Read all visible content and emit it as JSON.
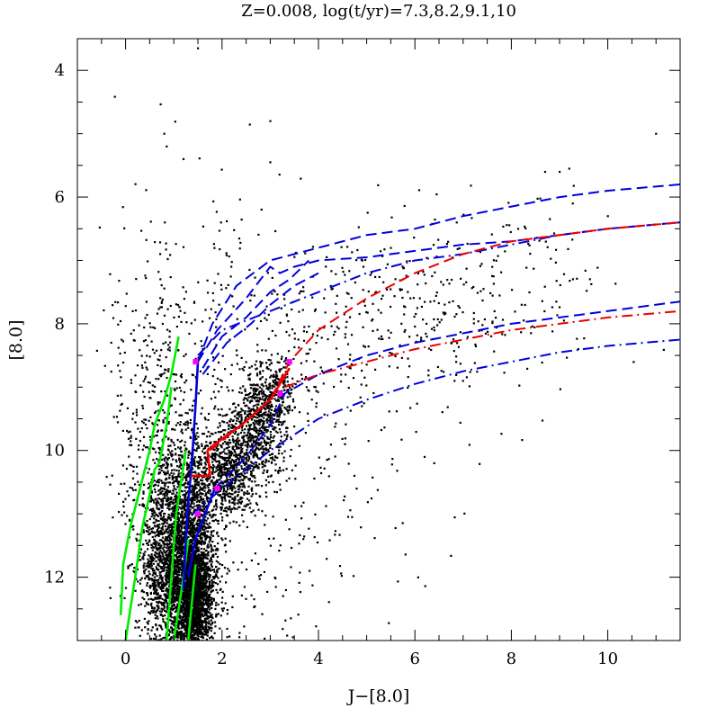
{
  "chart_data": {
    "type": "scatter",
    "title": "Z=0.008,  log(t/yr)=7.3,8.2,9.1,10",
    "xlabel": "J−[8.0]",
    "ylabel": "[8.0]",
    "xlim": [
      -1.0,
      11.5
    ],
    "ylim": [
      13.0,
      3.5
    ],
    "y_inverted": true,
    "x_ticks": [
      0,
      2,
      4,
      6,
      8,
      10
    ],
    "y_ticks": [
      4,
      6,
      8,
      10,
      12
    ],
    "grid": false,
    "legend": "none",
    "colors": {
      "points": "#000000",
      "green": "#00ee00",
      "blue": "#0000dd",
      "red": "#ee0000",
      "magenta": "#ff00ff"
    },
    "scatter_clouds": [
      {
        "cx": 1.1,
        "cy": 12.0,
        "sx": 0.35,
        "sy": 0.7,
        "n": 2400
      },
      {
        "cx": 1.45,
        "cy": 12.3,
        "sx": 0.18,
        "sy": 0.55,
        "n": 1600
      },
      {
        "cx": 1.2,
        "cy": 10.8,
        "sx": 0.4,
        "sy": 0.7,
        "n": 900
      },
      {
        "cx": 2.1,
        "cy": 10.4,
        "sx": 0.35,
        "sy": 0.35,
        "n": 700
      },
      {
        "cx": 2.7,
        "cy": 9.7,
        "sx": 0.35,
        "sy": 0.35,
        "n": 500
      },
      {
        "cx": 3.0,
        "cy": 9.1,
        "sx": 0.3,
        "sy": 0.3,
        "n": 350
      },
      {
        "cx": 0.6,
        "cy": 9.5,
        "sx": 0.45,
        "sy": 1.2,
        "n": 300
      },
      {
        "cx": 1.3,
        "cy": 8.0,
        "sx": 0.8,
        "sy": 1.4,
        "n": 150
      },
      {
        "cx": 5.5,
        "cy": 8.0,
        "sx": 2.0,
        "sy": 0.7,
        "n": 400
      },
      {
        "cx": 4.2,
        "cy": 10.5,
        "sx": 1.3,
        "sy": 1.2,
        "n": 130
      },
      {
        "cx": 3.0,
        "cy": 12.2,
        "sx": 1.0,
        "sy": 0.6,
        "n": 70
      },
      {
        "cx": 7.0,
        "cy": 7.0,
        "sx": 1.5,
        "sy": 0.6,
        "n": 80
      }
    ],
    "scatter_points": [
      {
        "x": 1.5,
        "y": 3.65
      },
      {
        "x": 3.0,
        "y": 4.8
      },
      {
        "x": 0.8,
        "y": 5.0
      },
      {
        "x": 0.85,
        "y": 5.2
      },
      {
        "x": 1.2,
        "y": 5.4
      },
      {
        "x": 3.0,
        "y": 5.45
      },
      {
        "x": 11.0,
        "y": 5.0
      },
      {
        "x": 9.0,
        "y": 5.6
      },
      {
        "x": 8.7,
        "y": 5.6
      },
      {
        "x": 9.2,
        "y": 5.55
      },
      {
        "x": 6.2,
        "y": 10.1
      },
      {
        "x": 6.4,
        "y": 10.2
      },
      {
        "x": 10.0,
        "y": 6.3
      },
      {
        "x": 0.3,
        "y": 12.1
      }
    ],
    "series": [
      {
        "style": "solid",
        "color": "green",
        "x": [
          -0.1,
          -0.05,
          0.1,
          0.3,
          0.5,
          0.6,
          0.8,
          0.95,
          1.1
        ],
        "y": [
          12.6,
          11.8,
          11.2,
          10.6,
          10.0,
          9.6,
          9.2,
          8.8,
          8.2
        ]
      },
      {
        "style": "solid",
        "color": "green",
        "x": [
          0.0,
          0.2,
          0.35,
          0.5,
          0.6,
          0.7,
          0.85,
          0.95
        ],
        "y": [
          13.0,
          12.0,
          11.2,
          10.7,
          10.3,
          10.2,
          9.6,
          9.0
        ]
      },
      {
        "style": "solid",
        "color": "green",
        "x": [
          0.85,
          0.95,
          1.05,
          1.15,
          1.25
        ],
        "y": [
          13.0,
          12.0,
          11.0,
          10.5,
          10.0
        ]
      },
      {
        "style": "solid",
        "color": "green",
        "x": [
          1.0,
          1.1,
          1.2,
          1.3
        ],
        "y": [
          13.0,
          12.5,
          12.0,
          11.4
        ]
      },
      {
        "style": "solid",
        "color": "green",
        "x": [
          1.3,
          1.35,
          1.4,
          1.45
        ],
        "y": [
          13.0,
          12.6,
          12.2,
          11.8
        ]
      },
      {
        "style": "solid",
        "color": "blue",
        "x": [
          1.2,
          1.25,
          1.3,
          1.35,
          1.4,
          1.45,
          1.5
        ],
        "y": [
          12.2,
          11.4,
          10.8,
          10.4,
          9.9,
          9.3,
          8.6
        ]
      },
      {
        "style": "solid",
        "color": "blue",
        "x": [
          1.3,
          1.45,
          1.65,
          1.85
        ],
        "y": [
          12.0,
          11.4,
          11.0,
          10.6
        ]
      },
      {
        "style": "solid",
        "color": "red",
        "x": [
          1.35,
          1.45,
          1.75,
          1.7,
          1.85,
          2.4,
          3.0,
          3.4
        ],
        "y": [
          10.4,
          10.4,
          10.4,
          10.0,
          9.9,
          9.6,
          9.2,
          8.7
        ]
      },
      {
        "style": "dashed",
        "color": "blue",
        "x": [
          1.5,
          1.8,
          2.3,
          3.0,
          3.5,
          4.0,
          5.0,
          6.0,
          7.0,
          8.0,
          9.0,
          10.0,
          11.5
        ],
        "y": [
          8.6,
          8.0,
          7.4,
          7.0,
          6.9,
          6.8,
          6.6,
          6.5,
          6.3,
          6.15,
          6.0,
          5.9,
          5.8
        ]
      },
      {
        "style": "dashed",
        "color": "blue",
        "x": [
          1.5,
          1.9,
          2.5,
          3.0,
          3.2,
          3.5,
          4.0,
          5.0,
          6.0,
          7.0,
          8.0,
          9.0,
          10.0,
          11.5
        ],
        "y": [
          8.6,
          8.1,
          7.6,
          7.1,
          7.2,
          7.1,
          7.0,
          6.95,
          6.85,
          6.75,
          6.7,
          6.6,
          6.5,
          6.4
        ]
      },
      {
        "style": "dashed",
        "color": "blue",
        "x": [
          1.6,
          2.0,
          2.5,
          3.0,
          3.4,
          3.8
        ],
        "y": [
          8.7,
          8.2,
          7.9,
          7.5,
          7.3,
          7.0
        ]
      },
      {
        "style": "dashed",
        "color": "blue",
        "x": [
          1.6,
          2.1,
          2.6,
          3.0,
          3.5,
          4.0
        ],
        "y": [
          8.8,
          8.3,
          8.0,
          7.7,
          7.4,
          7.2
        ]
      },
      {
        "style": "dashdot",
        "color": "blue",
        "x": [
          1.5,
          2.0,
          3.0,
          4.0,
          5.0,
          6.0,
          7.0,
          8.0,
          9.0,
          10.0,
          11.5
        ],
        "y": [
          8.5,
          8.1,
          7.8,
          7.5,
          7.2,
          7.0,
          6.9,
          6.75,
          6.6,
          6.5,
          6.4
        ]
      },
      {
        "style": "dashed",
        "color": "red",
        "x": [
          1.75,
          2.4,
          3.0,
          3.4,
          4.0,
          5.0,
          6.0,
          7.0,
          8.0,
          9.0,
          10.0,
          11.5
        ],
        "y": [
          10.0,
          9.6,
          9.2,
          8.6,
          8.1,
          7.6,
          7.2,
          6.9,
          6.7,
          6.6,
          6.5,
          6.4
        ]
      },
      {
        "style": "dashed",
        "color": "blue",
        "x": [
          1.85,
          2.5,
          3.0,
          3.3,
          4.0,
          5.0,
          6.0,
          7.0,
          8.0,
          9.0,
          10.0,
          11.5
        ],
        "y": [
          10.6,
          10.1,
          9.6,
          9.1,
          8.8,
          8.5,
          8.3,
          8.15,
          8.0,
          7.9,
          7.8,
          7.65
        ]
      },
      {
        "style": "dashdot",
        "color": "red",
        "x": [
          3.3,
          4.0,
          5.0,
          6.0,
          7.0,
          8.0,
          9.0,
          10.0,
          11.5
        ],
        "y": [
          9.0,
          8.8,
          8.6,
          8.4,
          8.25,
          8.1,
          8.0,
          7.9,
          7.8
        ]
      },
      {
        "style": "dashdot",
        "color": "blue",
        "x": [
          1.4,
          2.0,
          3.0,
          4.0,
          5.0,
          6.0,
          7.0,
          8.0,
          9.0,
          10.0,
          11.5
        ],
        "y": [
          11.0,
          10.6,
          10.0,
          9.5,
          9.2,
          8.95,
          8.75,
          8.6,
          8.45,
          8.35,
          8.25
        ]
      }
    ],
    "markers": [
      {
        "color": "magenta",
        "x": 1.45,
        "y": 8.6
      },
      {
        "color": "magenta",
        "x": 1.5,
        "y": 11.0
      },
      {
        "color": "magenta",
        "x": 1.9,
        "y": 10.6
      },
      {
        "color": "magenta",
        "x": 3.4,
        "y": 8.6
      },
      {
        "color": "magenta",
        "x": 3.2,
        "y": 9.1
      }
    ]
  }
}
